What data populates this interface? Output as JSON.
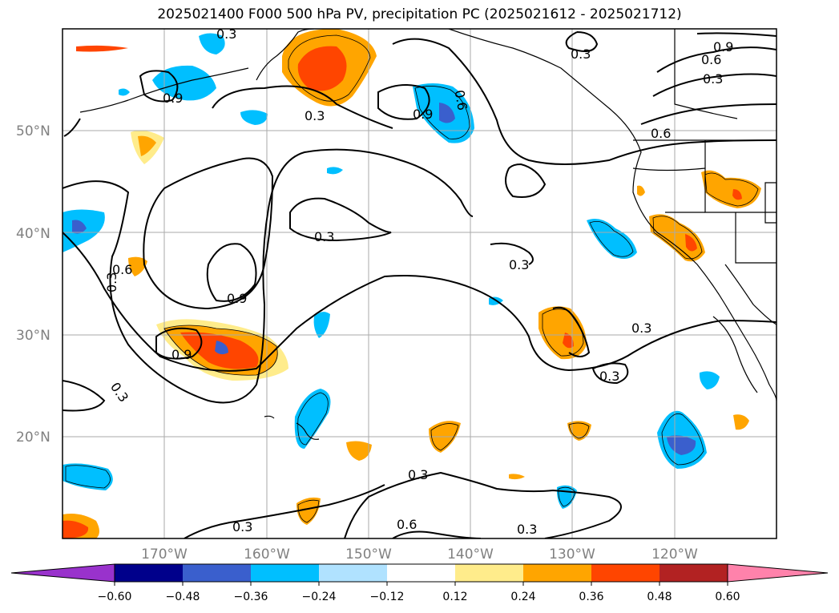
{
  "title": "2025021400 F000 500 hPa PV, precipitation PC (2025021612 - 2025021712)",
  "lat_labels": [
    "50°N",
    "40°N",
    "30°N",
    "20°N"
  ],
  "lon_labels": [
    "170°W",
    "160°W",
    "150°W",
    "140°W",
    "130°W",
    "120°W"
  ],
  "contour_labels": [
    "0.3",
    "0.9",
    "0.9",
    "0.6",
    "0.3",
    "0.6",
    "0.3",
    "0.3",
    "0.6",
    "0.9",
    "0.3",
    "0.3",
    "0.3",
    "0.9",
    "0.3",
    "0.3",
    "0.3",
    "0.6",
    "0.3",
    "0.3",
    "0.9",
    "0.6",
    "0.3"
  ],
  "colorbar": {
    "ticks": [
      "−0.60",
      "−0.48",
      "−0.36",
      "−0.24",
      "−0.12",
      "0.12",
      "0.24",
      "0.36",
      "0.48",
      "0.60"
    ],
    "colors": [
      "#9932cc",
      "#00008b",
      "#3a5fcd",
      "#00bfff",
      "#b0e2ff",
      "#ffffff",
      "#ffec8b",
      "#ffa500",
      "#ff4500",
      "#b22222",
      "#ff82ab"
    ]
  }
}
